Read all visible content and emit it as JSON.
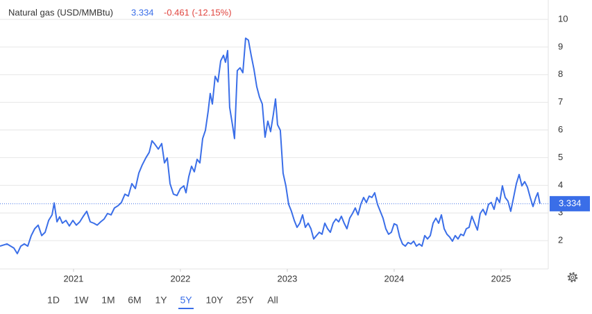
{
  "chart_data": {
    "type": "line",
    "title": "Natural gas (USD/MMBtu)",
    "last_value": 3.334,
    "change_text": "-0.461 (-12.15%)",
    "x": [
      2020.312,
      2020.377,
      2020.442,
      2020.474,
      2020.507,
      2020.539,
      2020.572,
      2020.604,
      2020.637,
      2020.669,
      2020.702,
      2020.734,
      2020.767,
      2020.799,
      2020.819,
      2020.845,
      2020.87,
      2020.896,
      2020.929,
      2020.961,
      2020.994,
      2021.026,
      2021.059,
      2021.091,
      2021.124,
      2021.156,
      2021.189,
      2021.221,
      2021.254,
      2021.286,
      2021.318,
      2021.351,
      2021.383,
      2021.416,
      2021.448,
      2021.481,
      2021.513,
      2021.546,
      2021.578,
      2021.611,
      2021.643,
      2021.676,
      2021.708,
      2021.734,
      2021.76,
      2021.793,
      2021.825,
      2021.851,
      2021.877,
      2021.903,
      2021.935,
      2021.968,
      2022.0,
      2022.032,
      2022.052,
      2022.078,
      2022.104,
      2022.13,
      2022.156,
      2022.182,
      2022.208,
      2022.234,
      2022.26,
      2022.279,
      2022.299,
      2022.325,
      2022.351,
      2022.377,
      2022.403,
      2022.422,
      2022.442,
      2022.461,
      2022.487,
      2022.506,
      2022.532,
      2022.558,
      2022.584,
      2022.61,
      2022.636,
      2022.662,
      2022.688,
      2022.714,
      2022.74,
      2022.766,
      2022.792,
      2022.818,
      2022.844,
      2022.87,
      2022.89,
      2022.909,
      2022.935,
      2022.961,
      2022.987,
      2023.013,
      2023.039,
      2023.065,
      2023.091,
      2023.117,
      2023.143,
      2023.169,
      2023.195,
      2023.221,
      2023.247,
      2023.273,
      2023.299,
      2023.325,
      2023.351,
      2023.377,
      2023.403,
      2023.429,
      2023.455,
      2023.481,
      2023.506,
      2023.532,
      2023.558,
      2023.584,
      2023.61,
      2023.636,
      2023.662,
      2023.688,
      2023.714,
      2023.74,
      2023.766,
      2023.792,
      2023.818,
      2023.844,
      2023.87,
      2023.896,
      2023.922,
      2023.948,
      2023.974,
      2024.0,
      2024.026,
      2024.052,
      2024.078,
      2024.104,
      2024.13,
      2024.156,
      2024.182,
      2024.208,
      2024.234,
      2024.26,
      2024.286,
      2024.312,
      2024.338,
      2024.364,
      2024.39,
      2024.416,
      2024.442,
      2024.468,
      2024.494,
      2024.519,
      2024.545,
      2024.571,
      2024.597,
      2024.623,
      2024.649,
      2024.675,
      2024.701,
      2024.727,
      2024.753,
      2024.779,
      2024.805,
      2024.831,
      2024.857,
      2024.883,
      2024.909,
      2024.935,
      2024.961,
      2024.987,
      2025.013,
      2025.039,
      2025.065,
      2025.091,
      2025.117,
      2025.143,
      2025.169,
      2025.195,
      2025.221,
      2025.247,
      2025.273,
      2025.299,
      2025.325,
      2025.344,
      2025.364
    ],
    "series": [
      {
        "color": "#3a6ee8",
        "values": [
          1.8,
          1.88,
          1.73,
          1.53,
          1.8,
          1.88,
          1.8,
          2.18,
          2.43,
          2.56,
          2.18,
          2.3,
          2.73,
          2.93,
          3.36,
          2.68,
          2.86,
          2.63,
          2.73,
          2.53,
          2.73,
          2.56,
          2.68,
          2.88,
          3.06,
          2.68,
          2.63,
          2.56,
          2.68,
          2.78,
          2.98,
          2.93,
          3.18,
          3.26,
          3.38,
          3.68,
          3.61,
          4.06,
          3.88,
          4.44,
          4.74,
          4.99,
          5.19,
          5.61,
          5.49,
          5.31,
          5.51,
          4.81,
          4.99,
          4.06,
          3.68,
          3.63,
          3.88,
          3.98,
          3.73,
          4.31,
          4.69,
          4.49,
          4.94,
          4.81,
          5.69,
          5.99,
          6.69,
          7.32,
          6.94,
          7.94,
          7.74,
          8.5,
          8.7,
          8.45,
          8.87,
          6.82,
          6.19,
          5.69,
          8.15,
          8.25,
          8.07,
          9.32,
          9.25,
          8.7,
          8.2,
          7.57,
          7.19,
          6.94,
          5.74,
          6.32,
          5.94,
          6.57,
          7.12,
          6.19,
          5.99,
          4.44,
          3.98,
          3.31,
          3.06,
          2.73,
          2.48,
          2.63,
          2.93,
          2.48,
          2.63,
          2.43,
          2.06,
          2.18,
          2.3,
          2.23,
          2.63,
          2.43,
          2.3,
          2.63,
          2.78,
          2.68,
          2.88,
          2.63,
          2.43,
          2.81,
          2.98,
          3.18,
          2.93,
          3.31,
          3.56,
          3.38,
          3.61,
          3.56,
          3.73,
          3.31,
          3.06,
          2.81,
          2.43,
          2.23,
          2.3,
          2.61,
          2.56,
          2.13,
          1.88,
          1.8,
          1.93,
          1.88,
          1.98,
          1.8,
          1.88,
          1.8,
          2.18,
          2.06,
          2.18,
          2.63,
          2.81,
          2.63,
          2.93,
          2.43,
          2.23,
          2.13,
          1.98,
          2.18,
          2.06,
          2.23,
          2.18,
          2.43,
          2.48,
          2.88,
          2.63,
          2.38,
          2.98,
          3.13,
          2.93,
          3.31,
          3.38,
          3.13,
          3.56,
          3.38,
          3.98,
          3.56,
          3.43,
          3.06,
          3.56,
          4.06,
          4.39,
          3.98,
          4.13,
          3.93,
          3.56,
          3.23,
          3.56,
          3.73,
          3.334
        ]
      }
    ],
    "xlim": [
      2020.312,
      2025.442
    ],
    "xticks": [
      2021,
      2022,
      2023,
      2024,
      2025
    ],
    "ylim": [
      1,
      10.5
    ],
    "yticks": [
      2,
      3,
      4,
      5,
      6,
      7,
      8,
      9,
      10
    ],
    "grid": true,
    "range_buttons": [
      "1D",
      "1W",
      "1M",
      "6M",
      "1Y",
      "5Y",
      "10Y",
      "25Y",
      "All"
    ],
    "selected_range": 5
  }
}
